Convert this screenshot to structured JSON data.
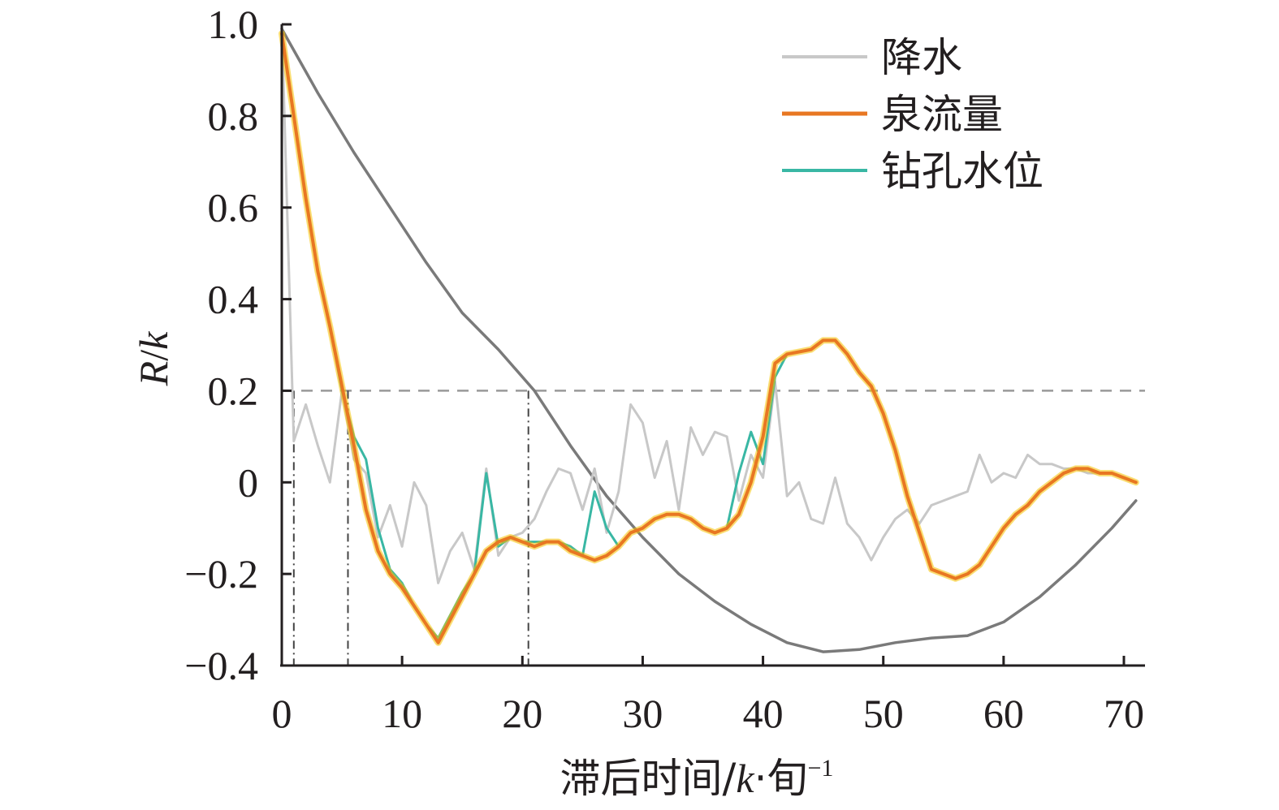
{
  "colors": {
    "axis": "#231f20",
    "reference_line": "#999999",
    "marker_line": "#444444",
    "precipitation": "#c8c8c8",
    "spring_flow": "#e87722",
    "spring_flow_glow": "#f6c200",
    "borehole_level": "#39b7a4",
    "smooth_curve": "#7a7a7a"
  },
  "chart_data": {
    "type": "line",
    "xlabel_main": "滞后时间/",
    "xlabel_k": "k",
    "xlabel_unit": "·旬",
    "xlabel_sup": "−1",
    "ylabel_R": "R",
    "ylabel_slash": "/",
    "ylabel_k": "k",
    "xlim": [
      0,
      72
    ],
    "ylim": [
      -0.4,
      1.0
    ],
    "x_ticks": [
      0,
      10,
      20,
      30,
      40,
      50,
      60,
      70
    ],
    "x_tick_labels": [
      "0",
      "10",
      "20",
      "30",
      "40",
      "50",
      "60",
      "70"
    ],
    "y_ticks": [
      -0.4,
      -0.2,
      0,
      0.2,
      0.4,
      0.6,
      0.8,
      1.0
    ],
    "y_tick_labels": [
      "−0.4",
      "−0.2",
      "0",
      "0.2",
      "0.4",
      "0.6",
      "0.8",
      "1.0"
    ],
    "grid": false,
    "legend_position": "top-right",
    "reference_line_y": 0.2,
    "marker_lines_x": [
      1,
      5.5,
      20.5
    ],
    "series": [
      {
        "name": "降水",
        "color_key": "precipitation",
        "x": [
          0,
          1,
          2,
          3,
          4,
          5,
          6,
          7,
          8,
          9,
          10,
          11,
          12,
          13,
          14,
          15,
          16,
          17,
          18,
          19,
          20,
          21,
          22,
          23,
          24,
          25,
          26,
          27,
          28,
          29,
          30,
          31,
          32,
          33,
          34,
          35,
          36,
          37,
          38,
          39,
          40,
          41,
          42,
          43,
          44,
          45,
          46,
          47,
          48,
          49,
          50,
          51,
          52,
          53,
          54,
          55,
          56,
          57,
          58,
          59,
          60,
          61,
          62,
          63,
          64,
          65,
          66,
          67,
          68,
          69,
          70,
          71
        ],
        "y": [
          1.0,
          0.09,
          0.17,
          0.08,
          0.0,
          0.2,
          0.05,
          0.02,
          -0.12,
          -0.05,
          -0.14,
          0.0,
          -0.05,
          -0.22,
          -0.15,
          -0.11,
          -0.19,
          0.03,
          -0.16,
          -0.12,
          -0.11,
          -0.08,
          -0.02,
          0.03,
          0.02,
          -0.06,
          0.03,
          -0.11,
          -0.02,
          0.17,
          0.13,
          0.01,
          0.09,
          -0.06,
          0.12,
          0.06,
          0.11,
          0.1,
          -0.04,
          0.06,
          0.01,
          0.22,
          -0.03,
          0.0,
          -0.08,
          -0.09,
          0.01,
          -0.09,
          -0.12,
          -0.17,
          -0.12,
          -0.08,
          -0.06,
          -0.09,
          -0.05,
          -0.04,
          -0.03,
          -0.02,
          0.06,
          0.0,
          0.02,
          0.01,
          0.06,
          0.04,
          0.04,
          0.03,
          0.03,
          0.02,
          0.02,
          0.02,
          0.01,
          0.0
        ]
      },
      {
        "name": "泉流量",
        "color_key": "spring_flow",
        "x": [
          0,
          1,
          2,
          3,
          4,
          5,
          6,
          7,
          8,
          9,
          10,
          11,
          12,
          13,
          14,
          15,
          16,
          17,
          18,
          19,
          20,
          21,
          22,
          23,
          24,
          25,
          26,
          27,
          28,
          29,
          30,
          31,
          32,
          33,
          34,
          35,
          36,
          37,
          38,
          39,
          40,
          41,
          42,
          43,
          44,
          45,
          46,
          47,
          48,
          49,
          50,
          51,
          52,
          53,
          54,
          55,
          56,
          57,
          58,
          59,
          60,
          61,
          62,
          63,
          64,
          65,
          66,
          67,
          68,
          69,
          70,
          71
        ],
        "y": [
          0.98,
          0.8,
          0.62,
          0.46,
          0.34,
          0.21,
          0.08,
          -0.06,
          -0.15,
          -0.2,
          -0.23,
          -0.27,
          -0.31,
          -0.35,
          -0.3,
          -0.25,
          -0.2,
          -0.15,
          -0.13,
          -0.12,
          -0.13,
          -0.14,
          -0.13,
          -0.13,
          -0.15,
          -0.16,
          -0.17,
          -0.16,
          -0.14,
          -0.11,
          -0.1,
          -0.08,
          -0.07,
          -0.07,
          -0.08,
          -0.1,
          -0.11,
          -0.1,
          -0.07,
          0.0,
          0.1,
          0.26,
          0.28,
          0.285,
          0.29,
          0.31,
          0.31,
          0.28,
          0.24,
          0.21,
          0.15,
          0.07,
          -0.03,
          -0.11,
          -0.19,
          -0.2,
          -0.21,
          -0.2,
          -0.18,
          -0.14,
          -0.1,
          -0.07,
          -0.05,
          -0.02,
          0.0,
          0.02,
          0.03,
          0.03,
          0.02,
          0.02,
          0.01,
          0.0
        ]
      },
      {
        "name": "钻孔水位",
        "color_key": "borehole_level",
        "x": [
          0,
          1,
          2,
          3,
          4,
          5,
          6,
          7,
          8,
          9,
          10,
          11,
          12,
          13,
          14,
          15,
          16,
          17,
          18,
          19,
          20,
          21,
          22,
          23,
          24,
          25,
          26,
          27,
          28,
          29,
          30,
          31,
          32,
          33,
          34,
          35,
          36,
          37,
          38,
          39,
          40,
          41,
          42,
          43,
          44,
          45,
          46,
          47,
          48,
          49,
          50,
          51,
          52,
          53,
          54,
          55,
          56,
          57,
          58,
          59,
          60,
          61,
          62,
          63,
          64,
          65,
          66,
          67,
          68,
          69,
          70,
          71
        ],
        "y": [
          0.98,
          0.8,
          0.62,
          0.46,
          0.34,
          0.2,
          0.1,
          0.05,
          -0.1,
          -0.19,
          -0.22,
          -0.27,
          -0.31,
          -0.34,
          -0.29,
          -0.24,
          -0.2,
          0.02,
          -0.14,
          -0.12,
          -0.13,
          -0.13,
          -0.13,
          -0.13,
          -0.14,
          -0.16,
          -0.02,
          -0.1,
          -0.14,
          -0.11,
          -0.1,
          -0.08,
          -0.07,
          -0.07,
          -0.08,
          -0.1,
          -0.11,
          -0.1,
          0.02,
          0.11,
          0.04,
          0.23,
          0.28,
          0.285,
          0.29,
          0.31,
          0.31,
          0.28,
          0.24,
          0.21,
          0.15,
          0.07,
          -0.03,
          -0.11,
          -0.19,
          -0.2,
          -0.21,
          -0.2,
          -0.18,
          -0.14,
          -0.1,
          -0.07,
          -0.05,
          -0.02,
          0.0,
          0.02,
          0.03,
          0.03,
          0.02,
          0.02,
          0.01,
          0.0
        ]
      },
      {
        "color_key": "smooth_curve",
        "x": [
          0,
          3,
          6,
          9,
          12,
          15,
          18,
          21,
          24,
          27,
          30,
          33,
          36,
          39,
          42,
          45,
          48,
          51,
          54,
          57,
          60,
          63,
          66,
          69,
          71
        ],
        "y": [
          0.99,
          0.85,
          0.72,
          0.6,
          0.48,
          0.37,
          0.29,
          0.2,
          0.08,
          -0.03,
          -0.12,
          -0.2,
          -0.26,
          -0.31,
          -0.35,
          -0.37,
          -0.365,
          -0.35,
          -0.34,
          -0.335,
          -0.305,
          -0.25,
          -0.18,
          -0.1,
          -0.04
        ]
      }
    ]
  }
}
